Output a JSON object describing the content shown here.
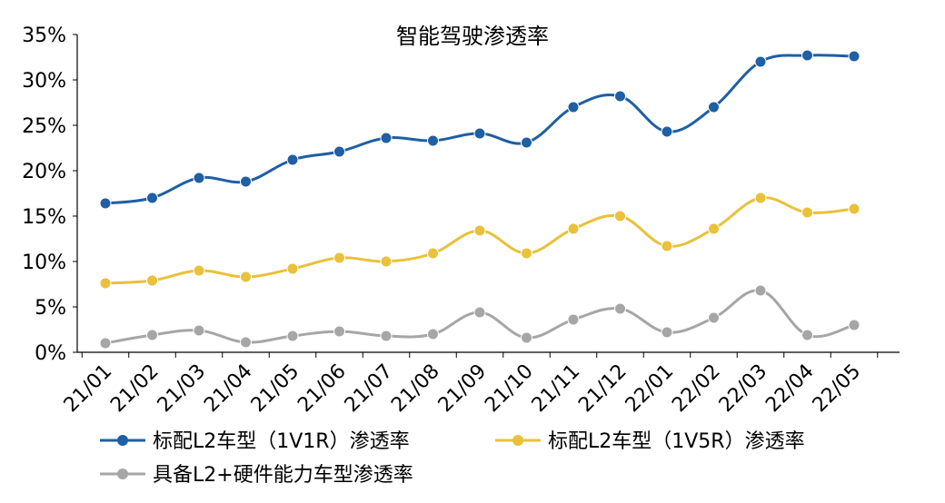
{
  "chart_data": {
    "type": "line",
    "title": "智能驾驶渗透率",
    "categories": [
      "21/01",
      "21/02",
      "21/03",
      "21/04",
      "21/05",
      "21/06",
      "21/07",
      "21/08",
      "21/09",
      "21/10",
      "21/11",
      "21/12",
      "22/01",
      "22/02",
      "22/03",
      "22/04",
      "22/05"
    ],
    "ylim": [
      0,
      35
    ],
    "yticks": [
      "0%",
      "5%",
      "10%",
      "15%",
      "20%",
      "25%",
      "30%",
      "35%"
    ],
    "ytick_values": [
      0,
      5,
      10,
      15,
      20,
      25,
      30,
      35
    ],
    "grid": false,
    "legend_position": "bottom",
    "series": [
      {
        "name": "标配L2车型（1V1R）渗透率",
        "color": "#1f5fa3",
        "values": [
          16.4,
          17.0,
          19.2,
          18.8,
          21.2,
          22.1,
          23.6,
          23.3,
          24.1,
          23.1,
          27.0,
          28.2,
          24.3,
          27.0,
          32.0,
          32.7,
          32.6
        ]
      },
      {
        "name": "标配L2车型（1V5R）渗透率",
        "color": "#e9c13a",
        "values": [
          7.6,
          7.9,
          9.0,
          8.3,
          9.2,
          10.4,
          10.0,
          10.9,
          13.4,
          10.9,
          13.6,
          15.0,
          11.7,
          13.6,
          17.0,
          15.4,
          15.8
        ]
      },
      {
        "name": "具备L2+硬件能力车型渗透率",
        "color": "#a6a6a6",
        "values": [
          1.0,
          1.9,
          2.4,
          1.1,
          1.8,
          2.3,
          1.8,
          2.0,
          4.4,
          1.6,
          3.6,
          4.8,
          2.2,
          3.8,
          6.8,
          1.9,
          3.0
        ]
      }
    ]
  }
}
